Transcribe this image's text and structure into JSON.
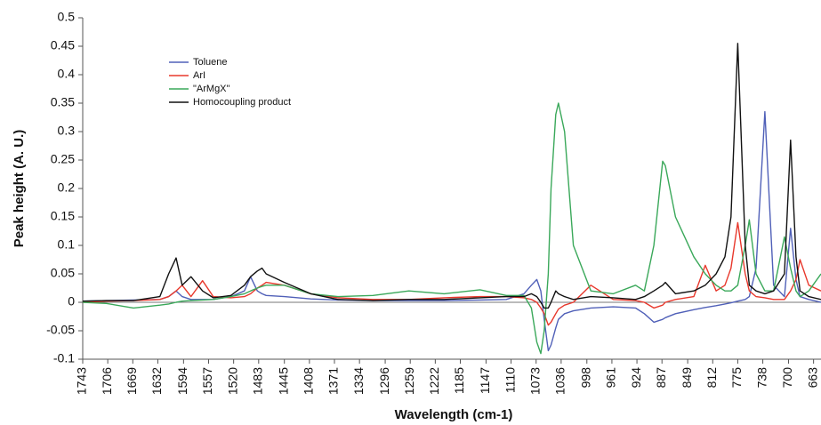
{
  "chart_data": {
    "type": "line",
    "xlabel": "Wavelength (cm-1)",
    "ylabel": "Peak height (A. U.)",
    "xlim": [
      1743,
      652
    ],
    "ylim": [
      -0.1,
      0.5
    ],
    "xticks": [
      1743,
      1706,
      1669,
      1632,
      1594,
      1557,
      1520,
      1483,
      1445,
      1408,
      1371,
      1334,
      1296,
      1259,
      1222,
      1185,
      1147,
      1110,
      1073,
      1036,
      998,
      961,
      924,
      887,
      849,
      812,
      775,
      738,
      700,
      663
    ],
    "yticks": [
      -0.1,
      -0.05,
      0,
      0.05,
      0.1,
      0.15,
      0.2,
      0.25,
      0.3,
      0.35,
      0.4,
      0.45,
      0.5
    ],
    "legend_position": "upper left",
    "x": [
      1743,
      1708,
      1668,
      1629,
      1616,
      1605,
      1596,
      1583,
      1566,
      1550,
      1524,
      1504,
      1495,
      1485,
      1478,
      1472,
      1445,
      1406,
      1366,
      1314,
      1261,
      1209,
      1156,
      1117,
      1091,
      1080,
      1072,
      1066,
      1061,
      1055,
      1051,
      1044,
      1040,
      1031,
      1018,
      992,
      959,
      926,
      913,
      899,
      886,
      882,
      867,
      840,
      823,
      807,
      794,
      785,
      775,
      764,
      758,
      748,
      735,
      722,
      706,
      697,
      689,
      683,
      670,
      652
    ],
    "series": [
      {
        "name": "Toluene",
        "color": "#5060b8",
        "values": [
          0.002,
          0.003,
          0.004,
          0.005,
          0.01,
          0.02,
          0.01,
          0.005,
          0.005,
          0.005,
          0.01,
          0.02,
          0.045,
          0.02,
          0.015,
          0.012,
          0.01,
          0.006,
          0.004,
          0.003,
          0.003,
          0.003,
          0.004,
          0.005,
          0.015,
          0.03,
          0.04,
          0.02,
          -0.03,
          -0.085,
          -0.075,
          -0.045,
          -0.03,
          -0.02,
          -0.015,
          -0.01,
          -0.008,
          -0.01,
          -0.02,
          -0.035,
          -0.03,
          -0.027,
          -0.02,
          -0.013,
          -0.009,
          -0.006,
          -0.003,
          -0.001,
          0.002,
          0.005,
          0.01,
          0.06,
          0.335,
          0.03,
          0.01,
          0.13,
          0.04,
          0.01,
          0.005,
          0
        ]
      },
      {
        "name": "ArI",
        "color": "#e8382c",
        "values": [
          0,
          0.002,
          0.003,
          0.005,
          0.01,
          0.02,
          0.03,
          0.01,
          0.038,
          0.01,
          0.008,
          0.01,
          0.015,
          0.025,
          0.03,
          0.035,
          0.03,
          0.015,
          0.008,
          0.005,
          0.005,
          0.008,
          0.01,
          0.01,
          0.008,
          0.005,
          0,
          -0.01,
          -0.02,
          -0.04,
          -0.035,
          -0.02,
          -0.012,
          -0.005,
          0,
          0.03,
          0.005,
          0.003,
          0,
          -0.01,
          -0.005,
          0,
          0.005,
          0.01,
          0.065,
          0.02,
          0.03,
          0.06,
          0.14,
          0.05,
          0.02,
          0.01,
          0.008,
          0.005,
          0.005,
          0.02,
          0.04,
          0.075,
          0.03,
          0.02
        ]
      },
      {
        "name": "\"ArMgX\"",
        "color": "#3aa85a",
        "values": [
          0,
          -0.002,
          -0.01,
          -0.005,
          -0.003,
          0,
          0.002,
          0.003,
          0.004,
          0.005,
          0.01,
          0.015,
          0.02,
          0.025,
          0.028,
          0.03,
          0.03,
          0.015,
          0.01,
          0.012,
          0.02,
          0.015,
          0.022,
          0.012,
          0.012,
          -0.01,
          -0.07,
          -0.09,
          -0.05,
          0.05,
          0.2,
          0.33,
          0.35,
          0.3,
          0.1,
          0.02,
          0.015,
          0.03,
          0.02,
          0.1,
          0.248,
          0.24,
          0.15,
          0.08,
          0.05,
          0.03,
          0.02,
          0.02,
          0.03,
          0.1,
          0.145,
          0.05,
          0.02,
          0.02,
          0.115,
          0.06,
          0.02,
          0.01,
          0.02,
          0.05
        ]
      },
      {
        "name": "Homocoupling product",
        "color": "#111111",
        "values": [
          0.002,
          0.003,
          0.003,
          0.01,
          0.05,
          0.078,
          0.03,
          0.045,
          0.02,
          0.008,
          0.012,
          0.03,
          0.045,
          0.055,
          0.06,
          0.05,
          0.035,
          0.015,
          0.005,
          0.003,
          0.005,
          0.005,
          0.008,
          0.01,
          0.01,
          0.015,
          0.01,
          0,
          -0.01,
          -0.01,
          0,
          0.02,
          0.015,
          0.01,
          0.005,
          0.01,
          0.008,
          0.005,
          0.01,
          0.02,
          0.03,
          0.035,
          0.015,
          0.02,
          0.03,
          0.05,
          0.08,
          0.15,
          0.455,
          0.1,
          0.03,
          0.02,
          0.015,
          0.02,
          0.05,
          0.285,
          0.08,
          0.02,
          0.01,
          0.005
        ]
      }
    ]
  }
}
